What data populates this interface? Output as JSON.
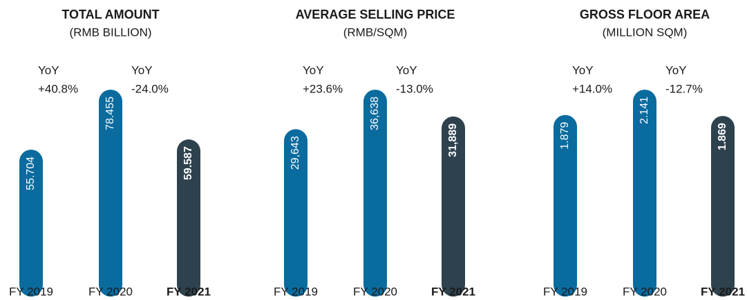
{
  "chart_data": [
    {
      "type": "bar",
      "title": "TOTAL AMOUNT",
      "subtitle": "(RMB BILLION)",
      "categories": [
        "FY 2019",
        "FY 2020",
        "FY 2021"
      ],
      "values": [
        55.704,
        78.455,
        59.587
      ],
      "colors": [
        "#0a6b9e",
        "#0a6b9e",
        "#2e424e"
      ],
      "highlight": 2,
      "annotations": [
        [
          "YoY",
          "+40.8%"
        ],
        [
          "YoY",
          "-24.0%"
        ]
      ]
    },
    {
      "type": "bar",
      "title": "AVERAGE SELLING PRICE",
      "subtitle": "(RMB/SQM)",
      "categories": [
        "FY 2019",
        "FY 2020",
        "FY 2021"
      ],
      "values": [
        29643,
        36638,
        31889
      ],
      "value_labels": [
        "29,643",
        "36,638",
        "31,889"
      ],
      "colors": [
        "#0a6b9e",
        "#0a6b9e",
        "#2e424e"
      ],
      "highlight": 2,
      "annotations": [
        [
          "YoY",
          "+23.6%"
        ],
        [
          "YoY",
          "-13.0%"
        ]
      ]
    },
    {
      "type": "bar",
      "title": "GROSS FLOOR AREA",
      "subtitle": "(MILLION SQM)",
      "categories": [
        "FY 2019",
        "FY 2020",
        "FY 2021"
      ],
      "values": [
        1.879,
        2.141,
        1.869
      ],
      "colors": [
        "#0a6b9e",
        "#0a6b9e",
        "#2e424e"
      ],
      "highlight": 2,
      "annotations": [
        [
          "YoY",
          "+14.0%"
        ],
        [
          "YoY",
          "-12.7%"
        ]
      ]
    }
  ]
}
